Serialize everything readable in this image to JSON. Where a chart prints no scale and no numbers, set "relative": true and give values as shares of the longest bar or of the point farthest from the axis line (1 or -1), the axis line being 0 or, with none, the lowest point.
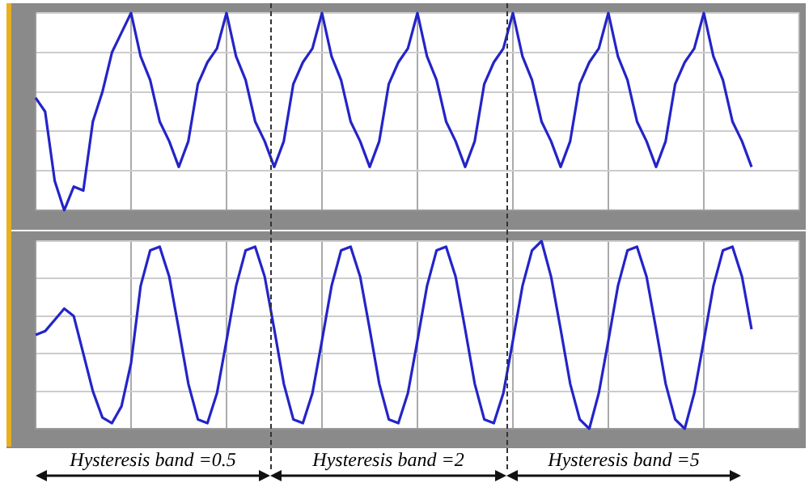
{
  "chart_data": [
    {
      "type": "line",
      "relative": true,
      "grid": true,
      "tick_labels": false,
      "marker": "none",
      "line_style": "solid",
      "categories": [
        null,
        null,
        null,
        null,
        null,
        null,
        null,
        null,
        null,
        null,
        null,
        null,
        null,
        null,
        null,
        null,
        null,
        null,
        null,
        null,
        null,
        null,
        null,
        null,
        null,
        null,
        null,
        null,
        null,
        null,
        null,
        null,
        null,
        null,
        null,
        null,
        null,
        null,
        null,
        null,
        null,
        null,
        null,
        null,
        null,
        null,
        null,
        null,
        null,
        null,
        null,
        null,
        null,
        null,
        null,
        null,
        null,
        null,
        null,
        null,
        null,
        null,
        null,
        null,
        null,
        null,
        null,
        null,
        null,
        null,
        null,
        null,
        null,
        null,
        null,
        null,
        null,
        null,
        null,
        null,
        null
      ],
      "series": [
        {
          "color": "#2424c8",
          "values": [
            0.57,
            0.5,
            0.15,
            0,
            0.12,
            0.1,
            0.45,
            0.6,
            0.8,
            0.9,
            1,
            0.78,
            0.66,
            0.45,
            0.35,
            0.22,
            0.35,
            0.64,
            0.75,
            0.82,
            1,
            0.78,
            0.66,
            0.45,
            0.35,
            0.22,
            0.35,
            0.64,
            0.75,
            0.82,
            1,
            0.78,
            0.66,
            0.45,
            0.35,
            0.22,
            0.35,
            0.64,
            0.75,
            0.82,
            1,
            0.78,
            0.66,
            0.45,
            0.35,
            0.22,
            0.35,
            0.64,
            0.75,
            0.82,
            1,
            0.78,
            0.66,
            0.45,
            0.35,
            0.22,
            0.35,
            0.64,
            0.75,
            0.82,
            1,
            0.78,
            0.66,
            0.45,
            0.35,
            0.22,
            0.35,
            0.64,
            0.75,
            0.82,
            1,
            0.78,
            0.66,
            0.45,
            0.35,
            0.22,
            null,
            null,
            null,
            null,
            null
          ]
        }
      ]
    },
    {
      "type": "line",
      "relative": true,
      "grid": true,
      "tick_labels": false,
      "marker": "none",
      "line_style": "solid",
      "categories": [
        null,
        null,
        null,
        null,
        null,
        null,
        null,
        null,
        null,
        null,
        null,
        null,
        null,
        null,
        null,
        null,
        null,
        null,
        null,
        null,
        null,
        null,
        null,
        null,
        null,
        null,
        null,
        null,
        null,
        null,
        null,
        null,
        null,
        null,
        null,
        null,
        null,
        null,
        null,
        null,
        null,
        null,
        null,
        null,
        null,
        null,
        null,
        null,
        null,
        null,
        null,
        null,
        null,
        null,
        null,
        null,
        null,
        null,
        null,
        null,
        null,
        null,
        null,
        null,
        null,
        null,
        null,
        null,
        null,
        null,
        null,
        null,
        null,
        null,
        null,
        null,
        null,
        null,
        null,
        null,
        null
      ],
      "series": [
        {
          "color": "#2424c8",
          "values": [
            0.5,
            0.52,
            0.58,
            0.64,
            0.6,
            0.4,
            0.2,
            0.06,
            0.03,
            0.12,
            0.35,
            0.76,
            0.95,
            0.97,
            0.81,
            0.53,
            0.24,
            0.05,
            0.03,
            0.19,
            0.47,
            0.76,
            0.95,
            0.97,
            0.81,
            0.53,
            0.24,
            0.05,
            0.03,
            0.19,
            0.47,
            0.76,
            0.95,
            0.97,
            0.81,
            0.53,
            0.24,
            0.05,
            0.03,
            0.19,
            0.47,
            0.76,
            0.95,
            0.97,
            0.81,
            0.53,
            0.24,
            0.05,
            0.03,
            0.19,
            0.47,
            0.76,
            0.95,
            1,
            0.81,
            0.53,
            0.24,
            0.05,
            0,
            0.19,
            0.47,
            0.76,
            0.95,
            0.97,
            0.81,
            0.53,
            0.24,
            0.05,
            0,
            0.19,
            0.47,
            0.76,
            0.95,
            0.97,
            0.81,
            0.53,
            null,
            null,
            null,
            null,
            null
          ]
        }
      ],
      "annotations": [
        "Hysteresis band =0.5",
        "Hysteresis band =2",
        "Hysteresis band =5"
      ]
    }
  ]
}
